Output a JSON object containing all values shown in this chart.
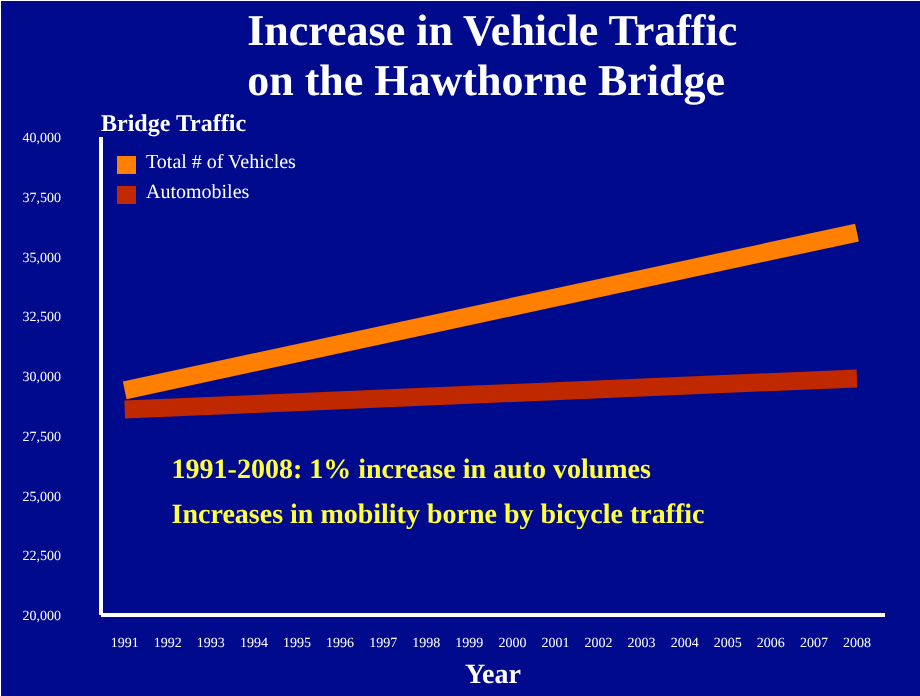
{
  "chart_data": {
    "type": "line",
    "title": "Increase in Vehicle Traffic on the Hawthorne Bridge",
    "xlabel": "Year",
    "ylabel": "Bridge Traffic",
    "x": [
      1991,
      2008
    ],
    "series": [
      {
        "name": "Total # of Vehicles",
        "color": "#ff8000",
        "values": [
          29400,
          36000
        ]
      },
      {
        "name": "Automobiles",
        "color": "#c02800",
        "values": [
          28600,
          29900
        ]
      }
    ],
    "xlim": [
      1990.45,
      2008.65
    ],
    "xticks": [
      1991,
      1992,
      1993,
      1994,
      1995,
      1996,
      1997,
      1998,
      1999,
      2000,
      2001,
      2002,
      2003,
      2004,
      2005,
      2006,
      2007,
      2008
    ],
    "ylim": [
      20000,
      40000
    ],
    "yticks": [
      {
        "value": 20000,
        "label": "20,000"
      },
      {
        "value": 22500,
        "label": "22,500"
      },
      {
        "value": 25000,
        "label": "25,000"
      },
      {
        "value": 27500,
        "label": "27,500"
      },
      {
        "value": 30000,
        "label": "30,000"
      },
      {
        "value": 32500,
        "label": "32,500"
      },
      {
        "value": 35000,
        "label": "35,000"
      },
      {
        "value": 37500,
        "label": "37,500"
      },
      {
        "value": 40000,
        "label": "40,000"
      }
    ],
    "grid": false,
    "legend": "top left",
    "marker": "none",
    "line_style": "solid",
    "annotations": [
      "1991-2008:   1% increase in auto volumes",
      "Increases in mobility borne by bicycle traffic"
    ]
  }
}
